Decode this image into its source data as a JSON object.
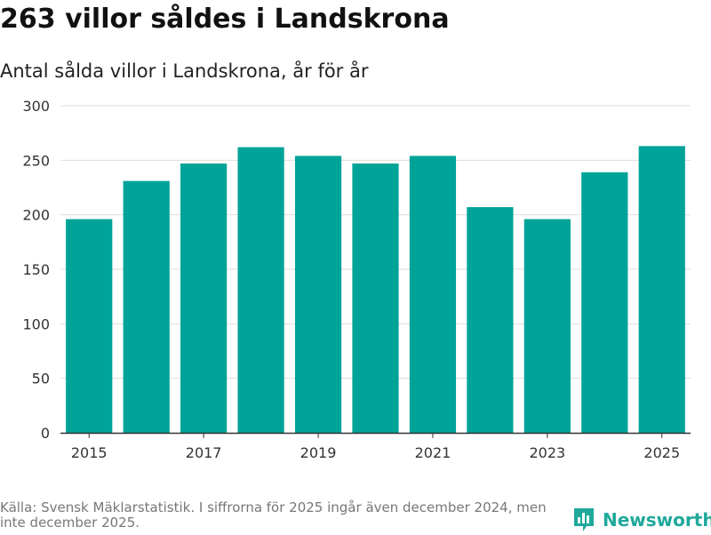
{
  "title": "263 villor såldes i Landskrona",
  "subtitle": "Antal sålda villor i Landskrona, år för år",
  "source": "Källa: Svensk Mäklarstatistik. I siffrorna för 2025 ingår även december 2024, men inte december 2025.",
  "brand": {
    "name": "Newsworthy",
    "color": "#1fa99b"
  },
  "colors": {
    "bar": "#00a398",
    "grid": "#dddddd",
    "axis": "#333333",
    "tick_text": "#333333"
  },
  "chart_data": {
    "type": "bar",
    "title": "263 villor såldes i Landskrona",
    "subtitle": "Antal sålda villor i Landskrona, år för år",
    "categories": [
      "2015",
      "2016",
      "2017",
      "2018",
      "2019",
      "2020",
      "2021",
      "2022",
      "2023",
      "2024",
      "2025"
    ],
    "values": [
      196,
      231,
      247,
      262,
      254,
      247,
      254,
      207,
      196,
      239,
      263
    ],
    "x_tick_labels": [
      "2015",
      "2017",
      "2019",
      "2021",
      "2023",
      "2025"
    ],
    "y_ticks": [
      0,
      50,
      100,
      150,
      200,
      250,
      300
    ],
    "ylim": [
      0,
      300
    ],
    "xlabel": "",
    "ylabel": "",
    "grid": true
  }
}
